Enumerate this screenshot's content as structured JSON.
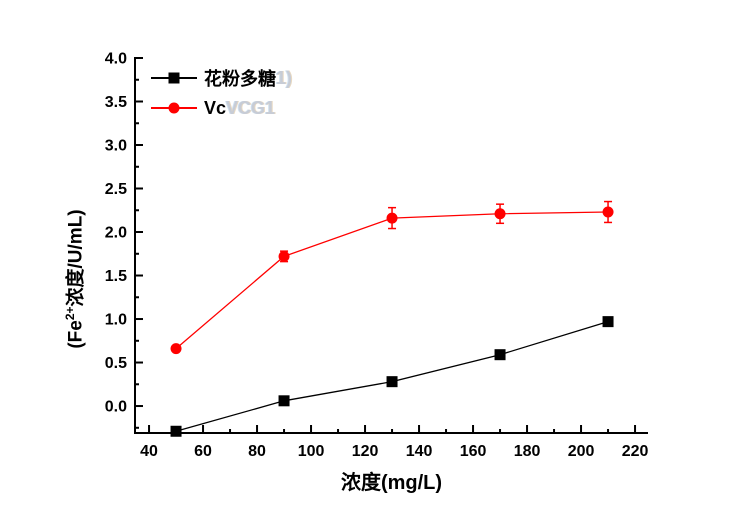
{
  "chart_data": {
    "type": "line",
    "title": "",
    "xlabel": "浓度(mg/L)",
    "ylabel": "(Fe2+浓度/U/mL)",
    "ylabel_parts": {
      "prefix": "(Fe",
      "superscript": "2+",
      "suffix": "浓度/U/mL)"
    },
    "x": [
      50,
      90,
      130,
      170,
      210
    ],
    "series": [
      {
        "name": "花粉多糖",
        "ghost": "1)",
        "color": "#000000",
        "marker": "square",
        "values": [
          -0.29,
          0.06,
          0.28,
          0.59,
          0.97
        ],
        "yerr": [
          0,
          0,
          0,
          0,
          0
        ]
      },
      {
        "name": "Vc",
        "ghost": "VCG1",
        "color": "#ff0000",
        "marker": "circle",
        "values": [
          0.66,
          1.72,
          2.16,
          2.21,
          2.23
        ],
        "yerr": [
          0,
          0.06,
          0.12,
          0.11,
          0.12
        ]
      }
    ],
    "xlim": [
      34.8,
      224.8
    ],
    "ylim": [
      -0.31,
      4.0
    ],
    "xticks": [
      40,
      60,
      80,
      100,
      120,
      140,
      160,
      180,
      200,
      220
    ],
    "xtick_labels": [
      "40",
      "60",
      "80",
      "100",
      "120",
      "140",
      "160",
      "180",
      "200",
      "220"
    ],
    "yticks": [
      0.0,
      0.5,
      1.0,
      1.5,
      2.0,
      2.5,
      3.0,
      3.5,
      4.0
    ],
    "ytick_labels": [
      "0.0",
      "0.5",
      "1.0",
      "1.5",
      "2.0",
      "2.5",
      "3.0",
      "3.5",
      "4.0"
    ],
    "x_minor_step": 10,
    "y_minor_step": 0.25,
    "grid": false,
    "legend_position": "top-left-inside"
  }
}
